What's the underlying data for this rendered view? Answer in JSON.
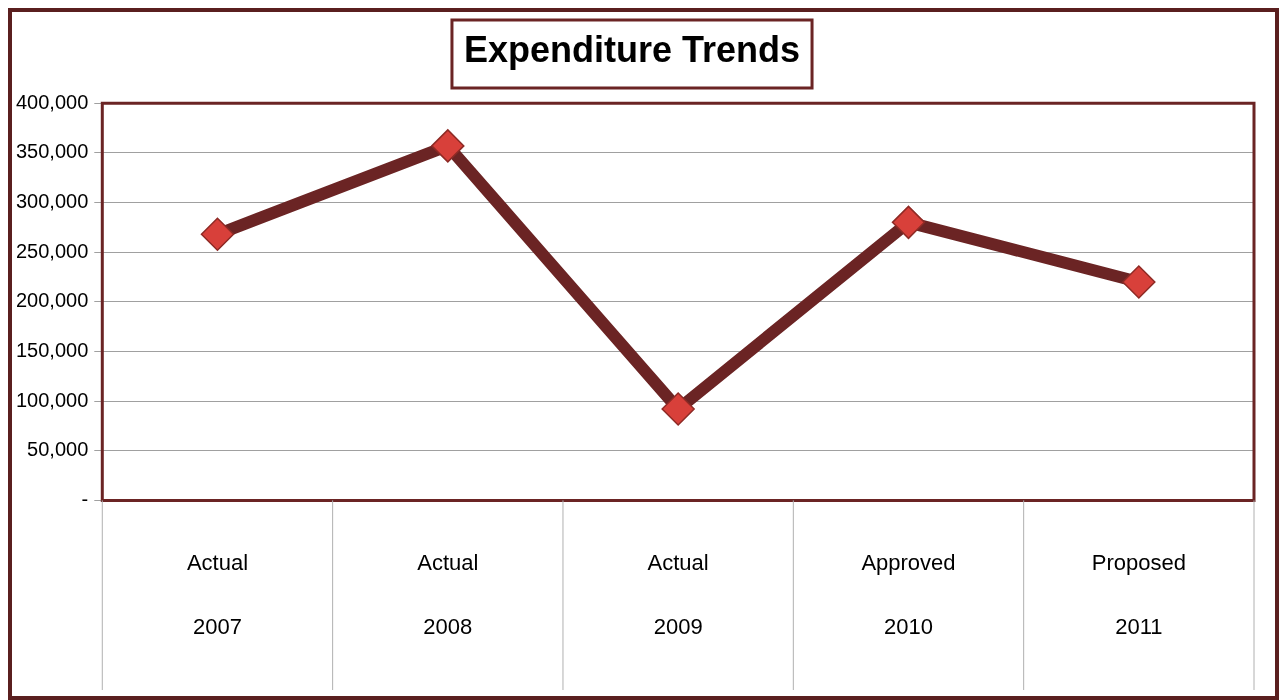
{
  "chart_data": {
    "type": "line",
    "title": "Expenditure Trends",
    "categories": [
      "Actual\n2007",
      "Actual\n2008",
      "Actual\n2009",
      "Approved\n2010",
      "Proposed\n2011"
    ],
    "series": [
      {
        "color": "#6b2424",
        "values": [
          268000,
          357000,
          92000,
          280000,
          220000
        ]
      }
    ],
    "ylim": [
      0,
      400000
    ],
    "yticks": [
      {
        "value": 0,
        "label": "-"
      },
      {
        "value": 50000,
        "label": "50,000"
      },
      {
        "value": 100000,
        "label": "100,000"
      },
      {
        "value": 150000,
        "label": "150,000"
      },
      {
        "value": 200000,
        "label": "200,000"
      },
      {
        "value": 250000,
        "label": "250,000"
      },
      {
        "value": 300000,
        "label": "300,000"
      },
      {
        "value": 350000,
        "label": "350,000"
      },
      {
        "value": 400000,
        "label": "400,000"
      }
    ],
    "grid": "y",
    "legend": false,
    "marker": "diamond",
    "line_style": "solid"
  }
}
